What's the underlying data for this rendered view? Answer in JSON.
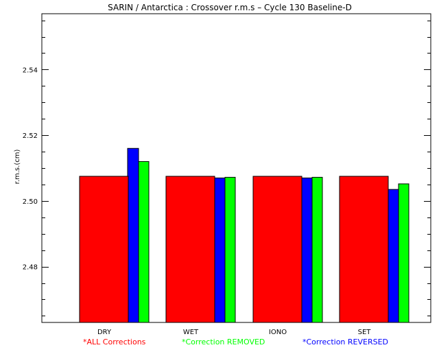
{
  "chart_data": {
    "type": "bar",
    "title": "SARIN / Antarctica : Crossover r.m.s – Cycle 130 Baseline-D",
    "ylabel": "r.m.s.(cm)",
    "xlabel": "",
    "categories": [
      "DRY",
      "WET",
      "IONO",
      "SET"
    ],
    "ylim": [
      2.463,
      2.557
    ],
    "yticks": [
      2.48,
      2.5,
      2.52,
      2.54
    ],
    "ytick_labels": [
      "2.48",
      "2.50",
      "2.52",
      "2.54"
    ],
    "grid": false,
    "legend_position": "bottom",
    "series": [
      {
        "name": "*ALL Corrections",
        "color": "#ff0000",
        "values": [
          2.5075,
          2.5075,
          2.5075,
          2.5075
        ]
      },
      {
        "name": "*Correction REVERSED",
        "color": "#0000ff",
        "values": [
          2.516,
          2.507,
          2.507,
          2.5035
        ]
      },
      {
        "name": "*Correction REMOVED",
        "color": "#00ff00",
        "values": [
          2.512,
          2.5072,
          2.5072,
          2.5052
        ]
      }
    ],
    "legend_order": [
      0,
      2,
      1
    ]
  }
}
